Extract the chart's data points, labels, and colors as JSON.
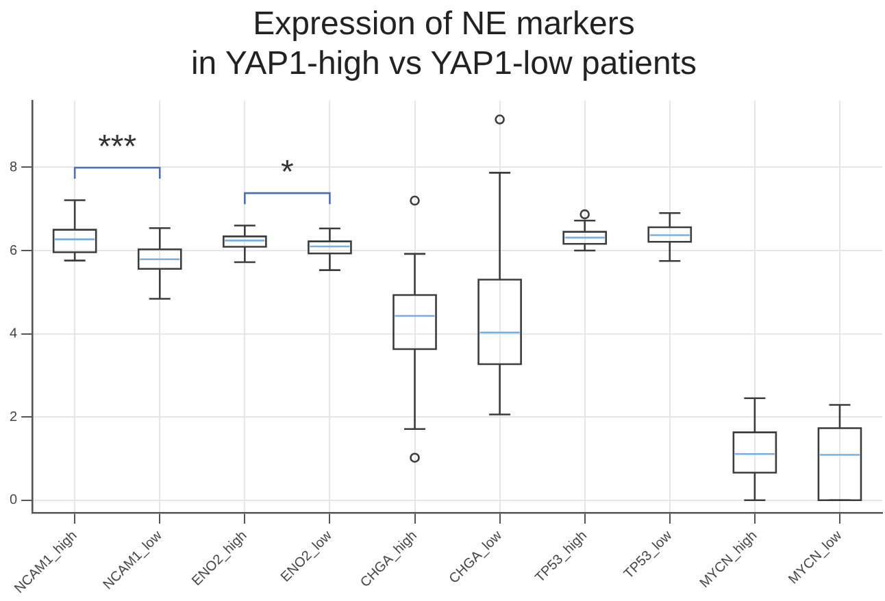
{
  "chart_data": {
    "type": "box",
    "title": "Expression of NE markers\nin YAP1-high vs YAP1-low patients",
    "categories": [
      "NCAM1_high",
      "NCAM1_low",
      "ENO2_high",
      "ENO2_low",
      "CHGA_high",
      "CHGA_low",
      "TP53_high",
      "TP53_low",
      "MYCN_high",
      "MYCN_low"
    ],
    "series": [
      {
        "color": "#3c3c3c",
        "boxes": [
          {
            "low": 5.76,
            "q1": 5.96,
            "median": 6.27,
            "q3": 6.5,
            "high": 7.21
          },
          {
            "low": 4.84,
            "q1": 5.56,
            "median": 5.79,
            "q3": 6.03,
            "high": 6.54
          },
          {
            "low": 5.72,
            "q1": 6.09,
            "median": 6.24,
            "q3": 6.34,
            "high": 6.6
          },
          {
            "low": 5.53,
            "q1": 5.93,
            "median": 6.1,
            "q3": 6.22,
            "high": 6.53
          },
          {
            "low": 1.71,
            "q1": 3.63,
            "median": 4.43,
            "q3": 4.93,
            "high": 5.92,
            "outliers": [
              7.2,
              1.02
            ]
          },
          {
            "low": 2.06,
            "q1": 3.27,
            "median": 4.03,
            "q3": 5.3,
            "high": 7.87,
            "outliers": [
              9.15
            ]
          },
          {
            "low": 6.0,
            "q1": 6.16,
            "median": 6.31,
            "q3": 6.45,
            "high": 6.72,
            "outliers": [
              6.87
            ]
          },
          {
            "low": 5.75,
            "q1": 6.21,
            "median": 6.37,
            "q3": 6.56,
            "high": 6.9
          },
          {
            "low": 0,
            "q1": 0.66,
            "median": 1.11,
            "q3": 1.63,
            "high": 2.45
          },
          {
            "low": 0,
            "q1": 0,
            "median": 1.09,
            "q3": 1.73,
            "high": 2.29
          }
        ]
      }
    ],
    "ylim": [
      -0.3,
      9.6
    ],
    "yticks": [
      0,
      2,
      4,
      6,
      8
    ],
    "grid": true,
    "annotations": [
      "***",
      "*"
    ]
  }
}
